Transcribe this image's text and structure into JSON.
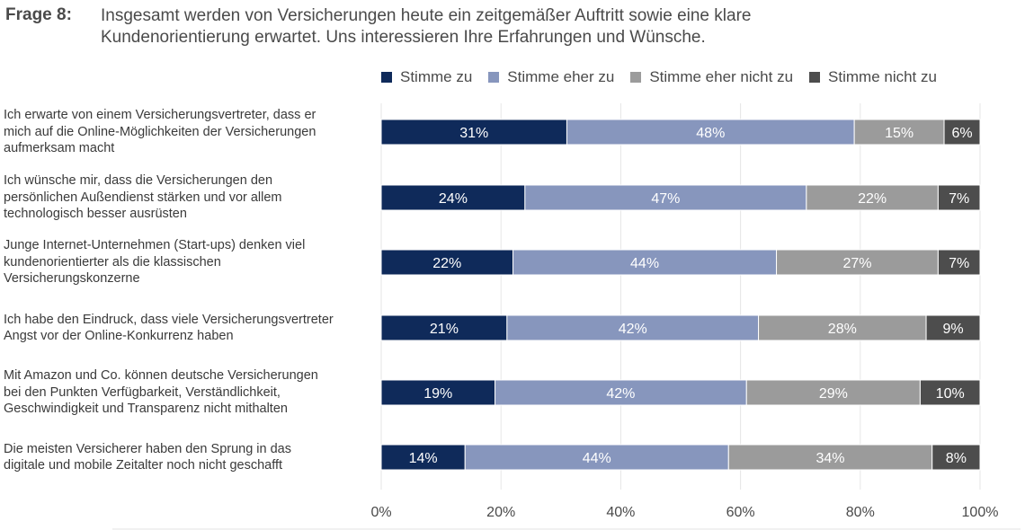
{
  "question": {
    "label": "Frage 8:",
    "text_line1": "Insgesamt werden von Versicherungen heute ein zeitgemäßer Auftritt sowie eine klare",
    "text_line2": "Kundenorientierung erwartet. Uns interessieren Ihre Erfahrungen und Wünsche."
  },
  "chart_data": {
    "type": "bar",
    "orientation": "horizontal",
    "stacked": true,
    "percent_scale": true,
    "xlim": [
      0,
      100
    ],
    "x_ticks": [
      "0%",
      "20%",
      "40%",
      "60%",
      "80%",
      "100%"
    ],
    "legend_position": "top",
    "categories": [
      "Ich erwarte von einem Versicherungsvertreter, dass er mich auf die Online-Möglichkeiten der Versicherungen aufmerksam macht",
      "Ich wünsche mir, dass die Versicherungen den persönlichen Außendienst stärken und vor allem technologisch besser ausrüsten",
      "Junge Internet-Unternehmen (Start-ups) denken viel kundenorientierter als die klassischen Versicherungskonzerne",
      "Ich habe den Eindruck, dass viele Versicherungsvertreter Angst vor der Online-Konkurrenz haben",
      "Mit Amazon und Co. können deutsche Versicherungen bei den Punkten Verfügbarkeit, Verständlichkeit, Geschwindigkeit und Transparenz nicht mithalten",
      "Die meisten Versicherer haben den Sprung in das digitale und mobile Zeitalter noch nicht geschafft"
    ],
    "category_lines": [
      [
        "Ich erwarte von einem Versicherungsvertreter, dass er",
        "mich auf die Online-Möglichkeiten der Versicherungen",
        "aufmerksam macht"
      ],
      [
        "Ich wünsche mir, dass die Versicherungen den",
        "persönlichen Außendienst stärken und vor allem",
        "technologisch besser ausrüsten"
      ],
      [
        "Junge Internet-Unternehmen (Start-ups) denken viel",
        "kundenorientierter als die klassischen",
        "Versicherungskonzerne"
      ],
      [
        "Ich habe den Eindruck, dass viele Versicherungsvertreter",
        "Angst vor der Online-Konkurrenz haben"
      ],
      [
        "Mit Amazon und Co. können deutsche Versicherungen",
        "bei den Punkten Verfügbarkeit, Verständlichkeit,",
        "Geschwindigkeit und Transparenz nicht mithalten"
      ],
      [
        "Die meisten Versicherer haben den Sprung in das",
        "digitale und mobile Zeitalter noch nicht geschafft"
      ]
    ],
    "series": [
      {
        "name": "Stimme zu",
        "color": "#0f2a5a",
        "values": [
          31,
          24,
          22,
          21,
          19,
          14
        ]
      },
      {
        "name": "Stimme eher zu",
        "color": "#8796bd",
        "values": [
          48,
          47,
          44,
          42,
          42,
          44
        ]
      },
      {
        "name": "Stimme eher nicht zu",
        "color": "#9b9b9b",
        "values": [
          15,
          22,
          27,
          28,
          29,
          34
        ]
      },
      {
        "name": "Stimme nicht zu",
        "color": "#4d4d4d",
        "values": [
          6,
          7,
          7,
          9,
          10,
          8
        ]
      }
    ]
  }
}
